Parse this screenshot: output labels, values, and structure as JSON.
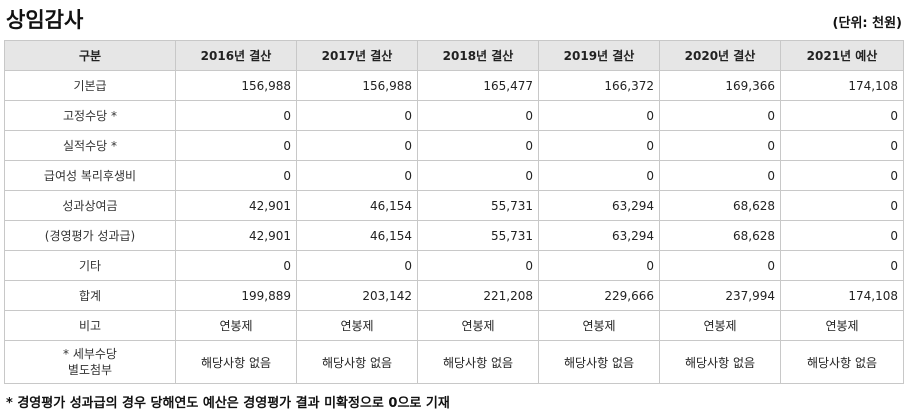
{
  "title": "상임감사",
  "unit": "(단위: 천원)",
  "table": {
    "headers": [
      "구분",
      "2016년 결산",
      "2017년 결산",
      "2018년 결산",
      "2019년 결산",
      "2020년 결산",
      "2021년 예산"
    ],
    "rows": [
      {
        "label": "기본급",
        "values": [
          "156,988",
          "156,988",
          "165,477",
          "166,372",
          "169,366",
          "174,108"
        ],
        "type": "num"
      },
      {
        "label": "고정수당 *",
        "values": [
          "0",
          "0",
          "0",
          "0",
          "0",
          "0"
        ],
        "type": "num"
      },
      {
        "label": "실적수당 *",
        "values": [
          "0",
          "0",
          "0",
          "0",
          "0",
          "0"
        ],
        "type": "num"
      },
      {
        "label": "급여성 복리후생비",
        "values": [
          "0",
          "0",
          "0",
          "0",
          "0",
          "0"
        ],
        "type": "num"
      },
      {
        "label": "성과상여금",
        "values": [
          "42,901",
          "46,154",
          "55,731",
          "63,294",
          "68,628",
          "0"
        ],
        "type": "num"
      },
      {
        "label": "(경영평가 성과급)",
        "values": [
          "42,901",
          "46,154",
          "55,731",
          "63,294",
          "68,628",
          "0"
        ],
        "type": "num"
      },
      {
        "label": "기타",
        "values": [
          "0",
          "0",
          "0",
          "0",
          "0",
          "0"
        ],
        "type": "num"
      },
      {
        "label": "합계",
        "values": [
          "199,889",
          "203,142",
          "221,208",
          "229,666",
          "237,994",
          "174,108"
        ],
        "type": "num"
      },
      {
        "label": "비고",
        "values": [
          "연봉제",
          "연봉제",
          "연봉제",
          "연봉제",
          "연봉제",
          "연봉제"
        ],
        "type": "txt"
      }
    ],
    "detail_row": {
      "label_line1": "* 세부수당",
      "label_line2": "별도첨부",
      "values": [
        "해당사항 없음",
        "해당사항 없음",
        "해당사항 없음",
        "해당사항 없음",
        "해당사항 없음",
        "해당사항 없음"
      ]
    }
  },
  "footnote": "* 경영평가 성과급의 경우 당해연도 예산은 경영평가 결과 미확정으로 0으로 기재"
}
